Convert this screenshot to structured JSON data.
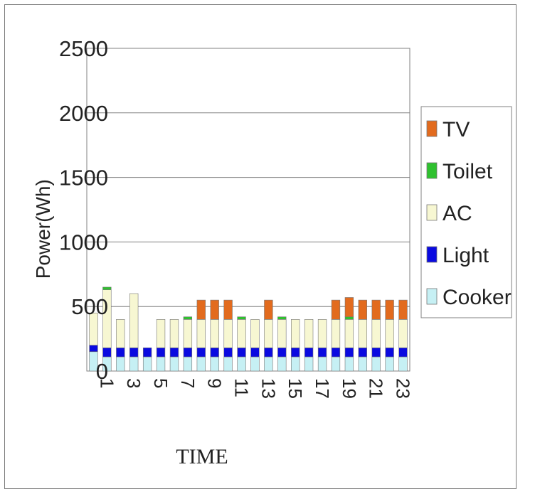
{
  "chart_data": {
    "type": "bar",
    "stacked": true,
    "title": "",
    "xlabel": "TIME",
    "ylabel": "Power(Wh)",
    "ylim": [
      0,
      2500
    ],
    "yticks": [
      "0",
      "500",
      "1000",
      "1500",
      "2000",
      "2500"
    ],
    "categories": [
      "0",
      "1",
      "2",
      "3",
      "4",
      "5",
      "6",
      "7",
      "8",
      "9",
      "10",
      "11",
      "12",
      "13",
      "14",
      "15",
      "16",
      "17",
      "18",
      "19",
      "20",
      "21",
      "22",
      "23"
    ],
    "xtick_labels": [
      "",
      "1",
      "",
      "3",
      "",
      "5",
      "",
      "7",
      "",
      "9",
      "",
      "11",
      "",
      "13",
      "",
      "15",
      "",
      "17",
      "",
      "19",
      "",
      "21",
      "",
      "23"
    ],
    "grid": "horizontal",
    "legend_position": "right",
    "series": [
      {
        "name": "Cooker",
        "color": "#c6f0f4",
        "values": [
          150,
          110,
          110,
          110,
          110,
          110,
          110,
          110,
          110,
          110,
          110,
          110,
          110,
          110,
          110,
          110,
          110,
          110,
          110,
          110,
          110,
          110,
          110,
          110
        ]
      },
      {
        "name": "Light",
        "color": "#0a0ae0",
        "values": [
          50,
          70,
          70,
          70,
          70,
          70,
          70,
          70,
          70,
          70,
          70,
          70,
          70,
          70,
          70,
          70,
          70,
          70,
          70,
          70,
          70,
          70,
          70,
          70
        ]
      },
      {
        "name": "AC",
        "color": "#f7f7d2",
        "values": [
          250,
          450,
          220,
          420,
          0,
          220,
          220,
          220,
          220,
          220,
          220,
          220,
          220,
          220,
          220,
          220,
          220,
          220,
          220,
          220,
          220,
          220,
          220,
          220
        ]
      },
      {
        "name": "Toilet",
        "color": "#2fc12f",
        "values": [
          0,
          20,
          0,
          0,
          0,
          0,
          0,
          20,
          0,
          0,
          0,
          20,
          0,
          0,
          20,
          0,
          0,
          0,
          0,
          20,
          0,
          0,
          0,
          0
        ]
      },
      {
        "name": "TV",
        "color": "#e26b1e",
        "values": [
          0,
          0,
          0,
          0,
          0,
          0,
          0,
          0,
          150,
          150,
          150,
          0,
          0,
          150,
          0,
          0,
          0,
          0,
          150,
          150,
          150,
          150,
          150,
          150
        ]
      }
    ],
    "legend_order": [
      "TV",
      "Toilet",
      "AC",
      "Light",
      "Cooker"
    ]
  }
}
